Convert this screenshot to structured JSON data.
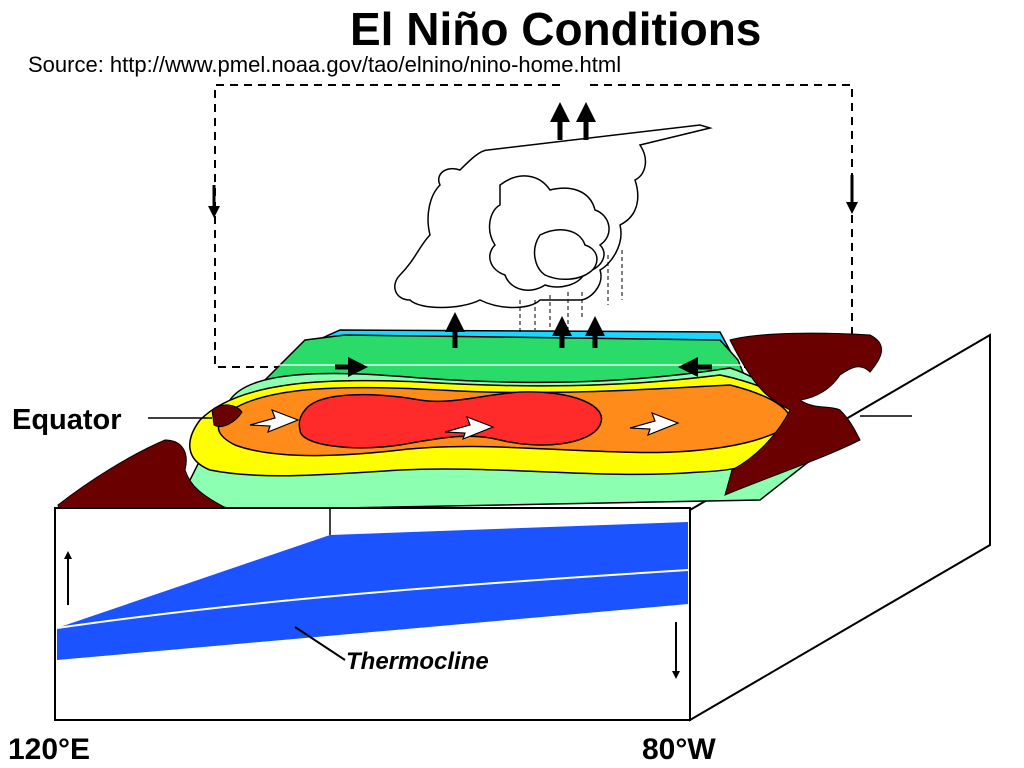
{
  "title": "El Niño Conditions",
  "source": "Source:  http://www.pmel.noaa.gov/tao/elnino/nino-home.html",
  "labels": {
    "equator": "Equator",
    "thermocline": "Thermocline",
    "longitude_west": "120°E",
    "longitude_east": "80°W"
  },
  "colors": {
    "land": "#6b0000",
    "warm_core": "#ff2a2a",
    "orange_band": "#ff8c1a",
    "yellow_band": "#ffff00",
    "light_green_band": "#8cffb0",
    "green_band": "#2adb6a",
    "cyan_band": "#19d8ff",
    "deep_water": "#1a53ff"
  }
}
